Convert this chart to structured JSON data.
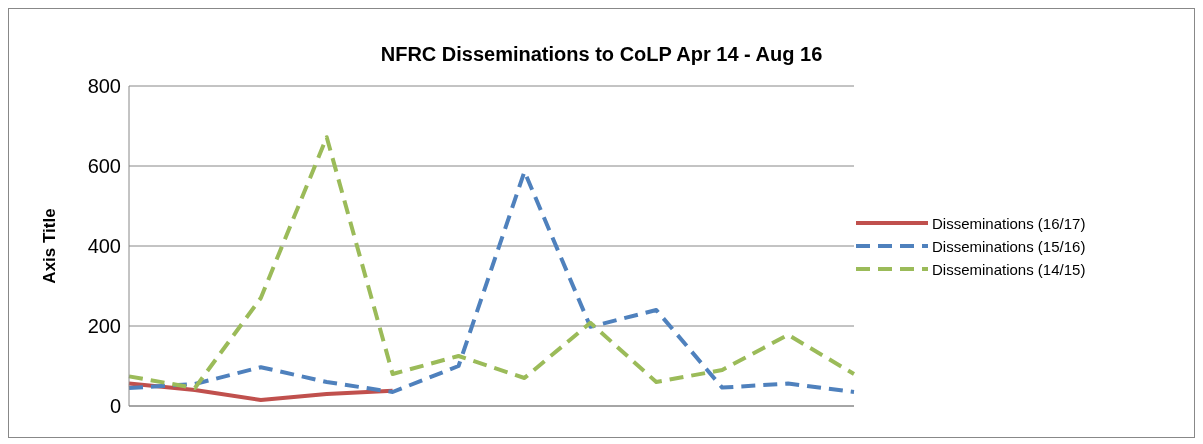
{
  "chart_data": {
    "type": "line",
    "title": "NFRC Disseminations to CoLP Apr 14 - Aug 16",
    "ylabel": "Axis Title",
    "categories": [
      null,
      null,
      null,
      null,
      null,
      null,
      null,
      null,
      null,
      null,
      null,
      null
    ],
    "series": [
      {
        "name": "Disseminations  (16/17)",
        "color": "#c0504d",
        "line_style": "solid",
        "values": [
          56,
          40,
          15,
          30,
          38,
          null,
          null,
          null,
          null,
          null,
          null,
          null
        ]
      },
      {
        "name": "Disseminations  (15/16)",
        "color": "#4f81bd",
        "line_style": "dashed",
        "values": [
          45,
          55,
          97,
          60,
          35,
          100,
          586,
          198,
          240,
          46,
          56,
          35
        ]
      },
      {
        "name": "Disseminations  (14/15)",
        "color": "#9bbb59",
        "line_style": "dashed",
        "values": [
          74,
          45,
          270,
          672,
          80,
          125,
          70,
          208,
          60,
          90,
          178,
          80
        ]
      }
    ],
    "ylim": [
      0,
      800
    ],
    "yticks": [
      0,
      200,
      400,
      600,
      800
    ],
    "grid": "y",
    "legend": "right",
    "marker": "none"
  }
}
